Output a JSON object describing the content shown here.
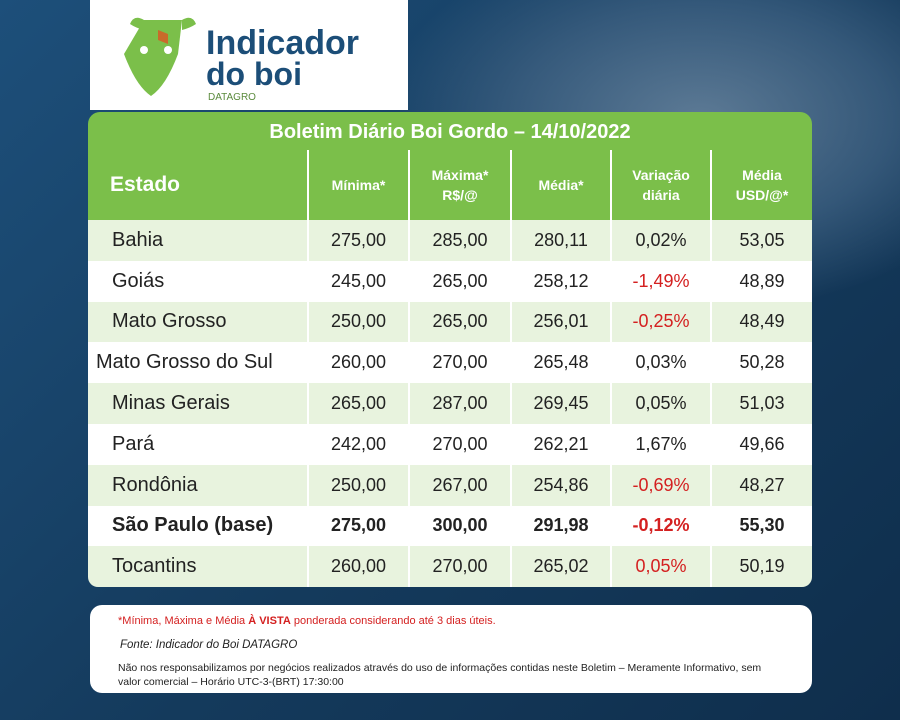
{
  "logo": {
    "line1": "Indicador",
    "line2": "do boi",
    "brand": "DATAGRO"
  },
  "table": {
    "title": "Boletim Diário Boi Gordo – 14/10/2022",
    "headers": [
      [
        "Estado"
      ],
      [
        "Mínima*"
      ],
      [
        "Máxima*",
        "R$/@"
      ],
      [
        "Média*"
      ],
      [
        "Variação",
        "diária"
      ],
      [
        "Média",
        "USD/@*"
      ]
    ],
    "rows": [
      [
        "Bahia",
        "275,00",
        "285,00",
        "280,11",
        "0,02%",
        "53,05"
      ],
      [
        "Goiás",
        "245,00",
        "265,00",
        "258,12",
        "-1,49%",
        "48,89"
      ],
      [
        "Mato Grosso",
        "250,00",
        "265,00",
        "256,01",
        "-0,25%",
        "48,49"
      ],
      [
        "Mato Grosso do Sul",
        "260,00",
        "270,00",
        "265,48",
        "0,03%",
        "50,28"
      ],
      [
        "Minas Gerais",
        "265,00",
        "287,00",
        "269,45",
        "0,05%",
        "51,03"
      ],
      [
        "Pará",
        "242,00",
        "270,00",
        "262,21",
        "1,67%",
        "49,66"
      ],
      [
        "Rondônia",
        "250,00",
        "267,00",
        "254,86",
        "-0,69%",
        "48,27"
      ],
      [
        "São Paulo (base)",
        "275,00",
        "300,00",
        "291,98",
        "-0,12%",
        "55,30"
      ],
      [
        "Tocantins",
        "260,00",
        "270,00",
        "265,02",
        "0,05%",
        "50,19"
      ]
    ]
  },
  "footer": {
    "note_prefix": "*Mínima, Máxima e Média ",
    "note_bold": "À VISTA",
    "note_suffix": " ponderada considerando até 3 dias úteis.",
    "source": "Fonte: Indicador do Boi DATAGRO",
    "disclaimer": "Não nos responsabilizamos por negócios realizados através do uso de informações contidas neste Boletim – Meramente Informativo, sem valor comercial – Horário UTC-3-(BRT) 17:30:00"
  }
}
